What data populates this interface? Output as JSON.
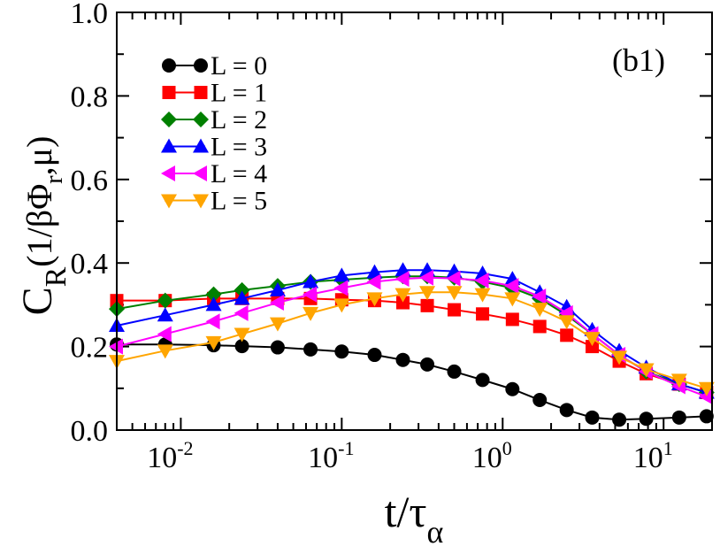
{
  "chart_data": {
    "type": "line",
    "panel_label": "(b1)",
    "xlabel": {
      "main": "t/τ",
      "sub": "α"
    },
    "ylabel": {
      "main": "C",
      "sub": "R",
      "arg_pre": "(1/βΦ",
      "arg_sub": "r",
      "arg_post": ",μ)"
    },
    "x_scale": "log",
    "xlim": [
      0.004,
      20
    ],
    "ylim": [
      0.0,
      1.0
    ],
    "x_ticks": [
      {
        "base": "10",
        "exp": "-2",
        "value": 0.01
      },
      {
        "base": "10",
        "exp": "-1",
        "value": 0.1
      },
      {
        "base": "10",
        "exp": "0",
        "value": 1
      },
      {
        "base": "10",
        "exp": "1",
        "value": 10
      }
    ],
    "y_ticks": [
      {
        "label": "0.0",
        "value": 0.0
      },
      {
        "label": "0.2",
        "value": 0.2
      },
      {
        "label": "0.4",
        "value": 0.4
      },
      {
        "label": "0.6",
        "value": 0.6
      },
      {
        "label": "0.8",
        "value": 0.8
      },
      {
        "label": "1.0",
        "value": 1.0
      }
    ],
    "x": [
      0.004,
      0.008,
      0.016,
      0.024,
      0.04,
      0.064,
      0.1,
      0.16,
      0.24,
      0.34,
      0.5,
      0.75,
      1.15,
      1.7,
      2.5,
      3.6,
      5.3,
      7.8,
      12.5,
      18.5
    ],
    "series": [
      {
        "name": "L = 0",
        "label": "L = 0",
        "color": "#000000",
        "marker": "circle",
        "values": [
          0.205,
          0.205,
          0.203,
          0.201,
          0.198,
          0.193,
          0.188,
          0.18,
          0.168,
          0.157,
          0.14,
          0.12,
          0.098,
          0.072,
          0.048,
          0.03,
          0.025,
          0.027,
          0.03,
          0.033
        ]
      },
      {
        "name": "L = 1",
        "label": "L = 1",
        "color": "#ff0000",
        "marker": "square",
        "values": [
          0.31,
          0.31,
          0.315,
          0.315,
          0.315,
          0.315,
          0.312,
          0.31,
          0.305,
          0.298,
          0.288,
          0.278,
          0.265,
          0.248,
          0.227,
          0.2,
          0.165,
          0.135,
          0.11,
          0.09
        ]
      },
      {
        "name": "L = 2",
        "label": "L = 2",
        "color": "#008000",
        "marker": "diamond",
        "values": [
          0.29,
          0.31,
          0.325,
          0.335,
          0.345,
          0.355,
          0.36,
          0.365,
          0.368,
          0.368,
          0.365,
          0.355,
          0.34,
          0.315,
          0.275,
          0.23,
          0.18,
          0.14,
          0.11,
          0.09
        ]
      },
      {
        "name": "L = 3",
        "label": "L = 3",
        "color": "#0000ff",
        "marker": "triangle-up",
        "values": [
          0.25,
          0.275,
          0.3,
          0.315,
          0.335,
          0.355,
          0.37,
          0.378,
          0.383,
          0.383,
          0.38,
          0.375,
          0.362,
          0.33,
          0.295,
          0.24,
          0.19,
          0.15,
          0.11,
          0.09
        ]
      },
      {
        "name": "L = 4",
        "label": "L = 4",
        "color": "#ff00ff",
        "marker": "triangle-left",
        "values": [
          0.2,
          0.23,
          0.26,
          0.28,
          0.305,
          0.325,
          0.34,
          0.355,
          0.362,
          0.365,
          0.363,
          0.358,
          0.345,
          0.32,
          0.28,
          0.23,
          0.18,
          0.14,
          0.105,
          0.08
        ]
      },
      {
        "name": "L = 5",
        "label": "L = 5",
        "color": "#ffa500",
        "marker": "triangle-down",
        "values": [
          0.165,
          0.19,
          0.21,
          0.23,
          0.255,
          0.28,
          0.3,
          0.315,
          0.325,
          0.33,
          0.33,
          0.325,
          0.315,
          0.29,
          0.26,
          0.22,
          0.175,
          0.145,
          0.12,
          0.1
        ]
      }
    ],
    "legend_position": "top-left"
  }
}
